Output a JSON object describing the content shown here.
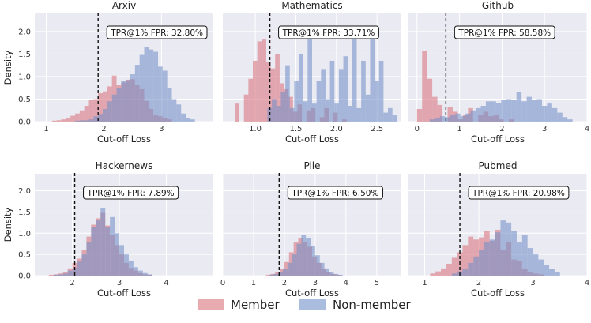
{
  "colors": {
    "member": "#d9737c",
    "nonmember": "#7391c8",
    "panel_bg": "#eaeaf2",
    "grid": "#ffffff"
  },
  "legend": {
    "member": "Member",
    "nonmember": "Non-member"
  },
  "chart_data": [
    {
      "type": "histogram",
      "title": "Arxiv",
      "xlabel": "Cut-off Loss",
      "ylabel": "Density",
      "xlim": [
        0.8,
        3.9
      ],
      "ylim": [
        0,
        2.4
      ],
      "xticks": [
        1,
        2,
        3
      ],
      "yticks": [
        0.0,
        0.5,
        1.0,
        1.5,
        2.0
      ],
      "threshold": 1.9,
      "annotation": "TPR@1% FPR: 32.80%",
      "member": {
        "start": 1.1,
        "width": 0.08,
        "values": [
          0.02,
          0.03,
          0.05,
          0.08,
          0.13,
          0.18,
          0.25,
          0.35,
          0.48,
          0.5,
          0.63,
          0.67,
          0.78,
          1.02,
          0.82,
          0.87,
          0.93,
          0.94,
          0.82,
          0.72,
          0.46,
          0.28,
          0.15,
          0.12,
          0.08,
          0.05
        ]
      },
      "nonmember": {
        "start": 1.5,
        "width": 0.08,
        "values": [
          0.02,
          0.03,
          0.03,
          0.05,
          0.12,
          0.17,
          0.28,
          0.45,
          0.6,
          0.75,
          0.9,
          0.92,
          1.05,
          1.26,
          1.48,
          1.65,
          1.6,
          1.55,
          1.22,
          1.13,
          0.75,
          0.5,
          0.38,
          0.18,
          0.08,
          0.05
        ]
      }
    },
    {
      "type": "histogram",
      "title": "Mathematics",
      "xlabel": "Cut-off Loss",
      "ylabel": "",
      "xlim": [
        0.6,
        2.8
      ],
      "ylim": [
        0,
        2.4
      ],
      "xticks": [
        1.0,
        1.5,
        2.0,
        2.5
      ],
      "yticks": [
        0.0,
        0.5,
        1.0,
        1.5,
        2.0
      ],
      "threshold": 1.18,
      "annotation": "TPR@1% FPR: 33.71%",
      "member": {
        "start": 0.75,
        "width": 0.055,
        "values": [
          0.4,
          0.0,
          0.6,
          0.95,
          1.35,
          1.78,
          1.82,
          1.32,
          1.18,
          1.5,
          0.85,
          0.72,
          0.55,
          0.22,
          0.38,
          0.0,
          0.25,
          0.3,
          0.0,
          0.1,
          0.3,
          0.0,
          0.2,
          0.0,
          0.05
        ]
      },
      "nonmember": {
        "start": 1.15,
        "width": 0.055,
        "values": [
          0.3,
          0.5,
          0.35,
          0.65,
          1.25,
          0.3,
          0.9,
          1.5,
          0.45,
          2.1,
          0.4,
          0.9,
          1.15,
          0.5,
          1.35,
          0.4,
          1.15,
          1.45,
          0.35,
          2.1,
          0.3,
          1.35,
          0.6,
          1.9,
          0.9,
          1.35,
          0.2,
          0.3,
          0.15
        ]
      }
    },
    {
      "type": "histogram",
      "title": "Github",
      "xlabel": "Cut-off Loss",
      "ylabel": "",
      "xlim": [
        -0.2,
        4.0
      ],
      "ylim": [
        0,
        2.4
      ],
      "xticks": [
        0,
        1,
        2,
        3,
        4
      ],
      "yticks": [
        0.0,
        0.5,
        1.0,
        1.5,
        2.0
      ],
      "threshold": 0.68,
      "annotation": "TPR@1% FPR: 58.58%",
      "member": {
        "start": 0.0,
        "width": 0.12,
        "values": [
          0.28,
          1.57,
          0.95,
          0.55,
          0.37,
          0.0,
          0.32,
          0.22,
          0.05,
          0.15,
          0.3,
          0.0,
          0.15,
          0.22,
          0.12,
          0.15,
          0.05,
          0.0,
          0.05
        ]
      },
      "nonmember": {
        "start": 0.3,
        "width": 0.12,
        "values": [
          0.05,
          0.08,
          0.12,
          0.1,
          0.15,
          0.18,
          0.12,
          0.18,
          0.25,
          0.3,
          0.35,
          0.45,
          0.45,
          0.42,
          0.48,
          0.5,
          0.48,
          0.65,
          0.45,
          0.55,
          0.48,
          0.5,
          0.35,
          0.4,
          0.3,
          0.2,
          0.1,
          0.05
        ]
      }
    },
    {
      "type": "histogram",
      "title": "Hackernews",
      "xlabel": "Cut-off Loss",
      "ylabel": "Density",
      "xlim": [
        1.2,
        5.0
      ],
      "ylim": [
        0,
        2.4
      ],
      "xticks": [
        2,
        3,
        4
      ],
      "yticks": [
        0.0,
        0.5,
        1.0,
        1.5,
        2.0
      ],
      "threshold": 2.05,
      "annotation": "TPR@1% FPR: 7.89%",
      "member": {
        "start": 1.5,
        "width": 0.1,
        "values": [
          0.02,
          0.03,
          0.05,
          0.08,
          0.17,
          0.3,
          0.4,
          0.6,
          0.92,
          1.2,
          1.35,
          1.48,
          1.18,
          0.95,
          0.72,
          0.5,
          0.3,
          0.18,
          0.12,
          0.06,
          0.03,
          0.02
        ]
      },
      "nonmember": {
        "start": 1.6,
        "width": 0.1,
        "values": [
          0.02,
          0.03,
          0.05,
          0.12,
          0.18,
          0.33,
          0.5,
          0.8,
          1.15,
          1.3,
          1.6,
          1.15,
          1.38,
          1.0,
          0.72,
          0.5,
          0.35,
          0.2,
          0.12,
          0.06,
          0.03
        ]
      }
    },
    {
      "type": "histogram",
      "title": "Pile",
      "xlabel": "Cut-off Loss",
      "ylabel": "",
      "xlim": [
        0.0,
        5.8
      ],
      "ylim": [
        0,
        2.4
      ],
      "xticks": [
        0,
        1,
        2,
        3,
        4,
        5
      ],
      "yticks": [
        0.0,
        0.5,
        1.0,
        1.5,
        2.0
      ],
      "threshold": 1.83,
      "annotation": "TPR@1% FPR: 6.50%",
      "member": {
        "start": 1.4,
        "width": 0.15,
        "values": [
          0.02,
          0.04,
          0.08,
          0.15,
          0.32,
          0.55,
          0.78,
          0.88,
          0.8,
          0.68,
          0.45,
          0.3,
          0.17,
          0.08,
          0.04,
          0.02
        ]
      },
      "nonmember": {
        "start": 1.5,
        "width": 0.15,
        "values": [
          0.02,
          0.04,
          0.08,
          0.15,
          0.3,
          0.5,
          0.75,
          0.95,
          0.88,
          0.7,
          0.48,
          0.3,
          0.17,
          0.08,
          0.04,
          0.02
        ]
      }
    },
    {
      "type": "histogram",
      "title": "Pubmed",
      "xlabel": "Cut-off Loss",
      "ylabel": "",
      "xlim": [
        0.7,
        4.0
      ],
      "ylim": [
        0,
        2.4
      ],
      "xticks": [
        1,
        2,
        3,
        4
      ],
      "yticks": [
        0.0,
        0.5,
        1.0,
        1.5,
        2.0
      ],
      "threshold": 1.65,
      "annotation": "TPR@1% FPR: 20.98%",
      "member": {
        "start": 1.1,
        "width": 0.1,
        "values": [
          0.05,
          0.1,
          0.17,
          0.28,
          0.42,
          0.55,
          0.72,
          0.92,
          0.85,
          0.9,
          1.05,
          0.82,
          1.08,
          0.6,
          0.78,
          0.38,
          0.35,
          0.15,
          0.08,
          0.05,
          0.03
        ]
      },
      "nonmember": {
        "start": 1.5,
        "width": 0.1,
        "values": [
          0.05,
          0.1,
          0.15,
          0.3,
          0.45,
          0.6,
          0.78,
          0.85,
          1.02,
          1.3,
          1.25,
          1.05,
          0.78,
          0.95,
          0.65,
          0.5,
          0.38,
          0.25,
          0.15,
          0.08
        ]
      }
    }
  ]
}
